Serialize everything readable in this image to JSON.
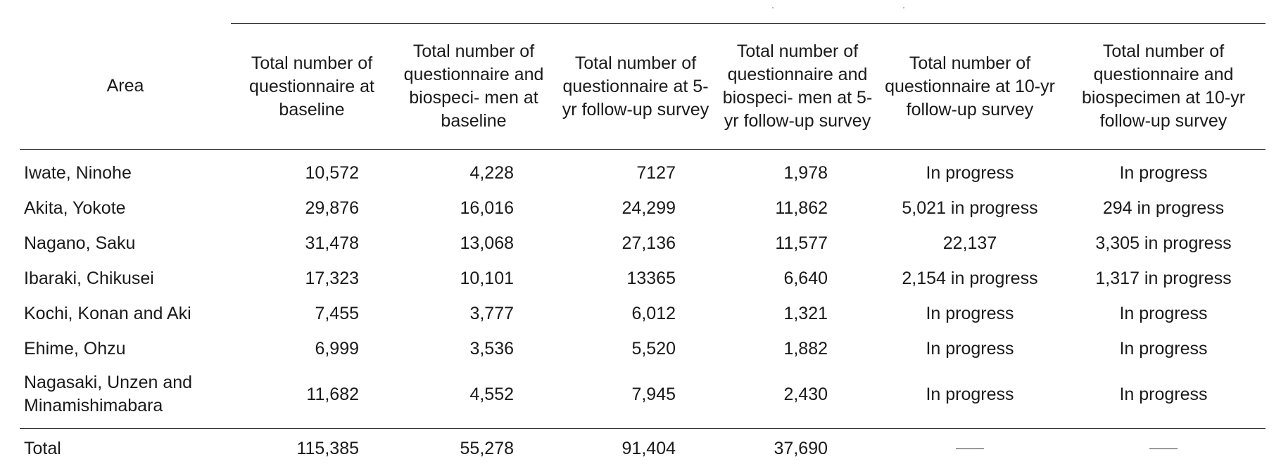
{
  "table": {
    "headers": [
      "Area",
      "Total number of questionnaire at baseline",
      "Total number of questionnaire and biospeci- men at baseline",
      "Total number of questionnaire at 5-yr follow-up survey",
      "Total number of questionnaire and biospeci- men at 5-yr follow-up survey",
      "Total number of questionnaire at 10-yr follow-up survey",
      "Total number of questionnaire and biospecimen at 10-yr follow-up survey"
    ],
    "rows": [
      [
        "Iwate, Ninohe",
        "10,572",
        "4,228",
        "7127",
        "1,978",
        "In progress",
        "In progress"
      ],
      [
        "Akita, Yokote",
        "29,876",
        "16,016",
        "24,299",
        "11,862",
        "5,021 in progress",
        "294 in progress"
      ],
      [
        "Nagano, Saku",
        "31,478",
        "13,068",
        "27,136",
        "11,577",
        "22,137",
        "3,305 in progress"
      ],
      [
        "Ibaraki, Chikusei",
        "17,323",
        "10,101",
        "13365",
        "6,640",
        "2,154 in progress",
        "1,317 in progress"
      ],
      [
        "Kochi, Konan and Aki",
        "7,455",
        "3,777",
        "6,012",
        "1,321",
        "In progress",
        "In progress"
      ],
      [
        "Ehime, Ohzu",
        "6,999",
        "3,536",
        "5,520",
        "1,882",
        "In progress",
        "In progress"
      ],
      [
        "Nagasaki, Unzen and Minamishimabara",
        "11,682",
        "4,552",
        "7,945",
        "2,430",
        "In progress",
        "In progress"
      ]
    ],
    "total": [
      "Total",
      "115,385",
      "55,278",
      "91,404",
      "37,690",
      "",
      ""
    ]
  }
}
